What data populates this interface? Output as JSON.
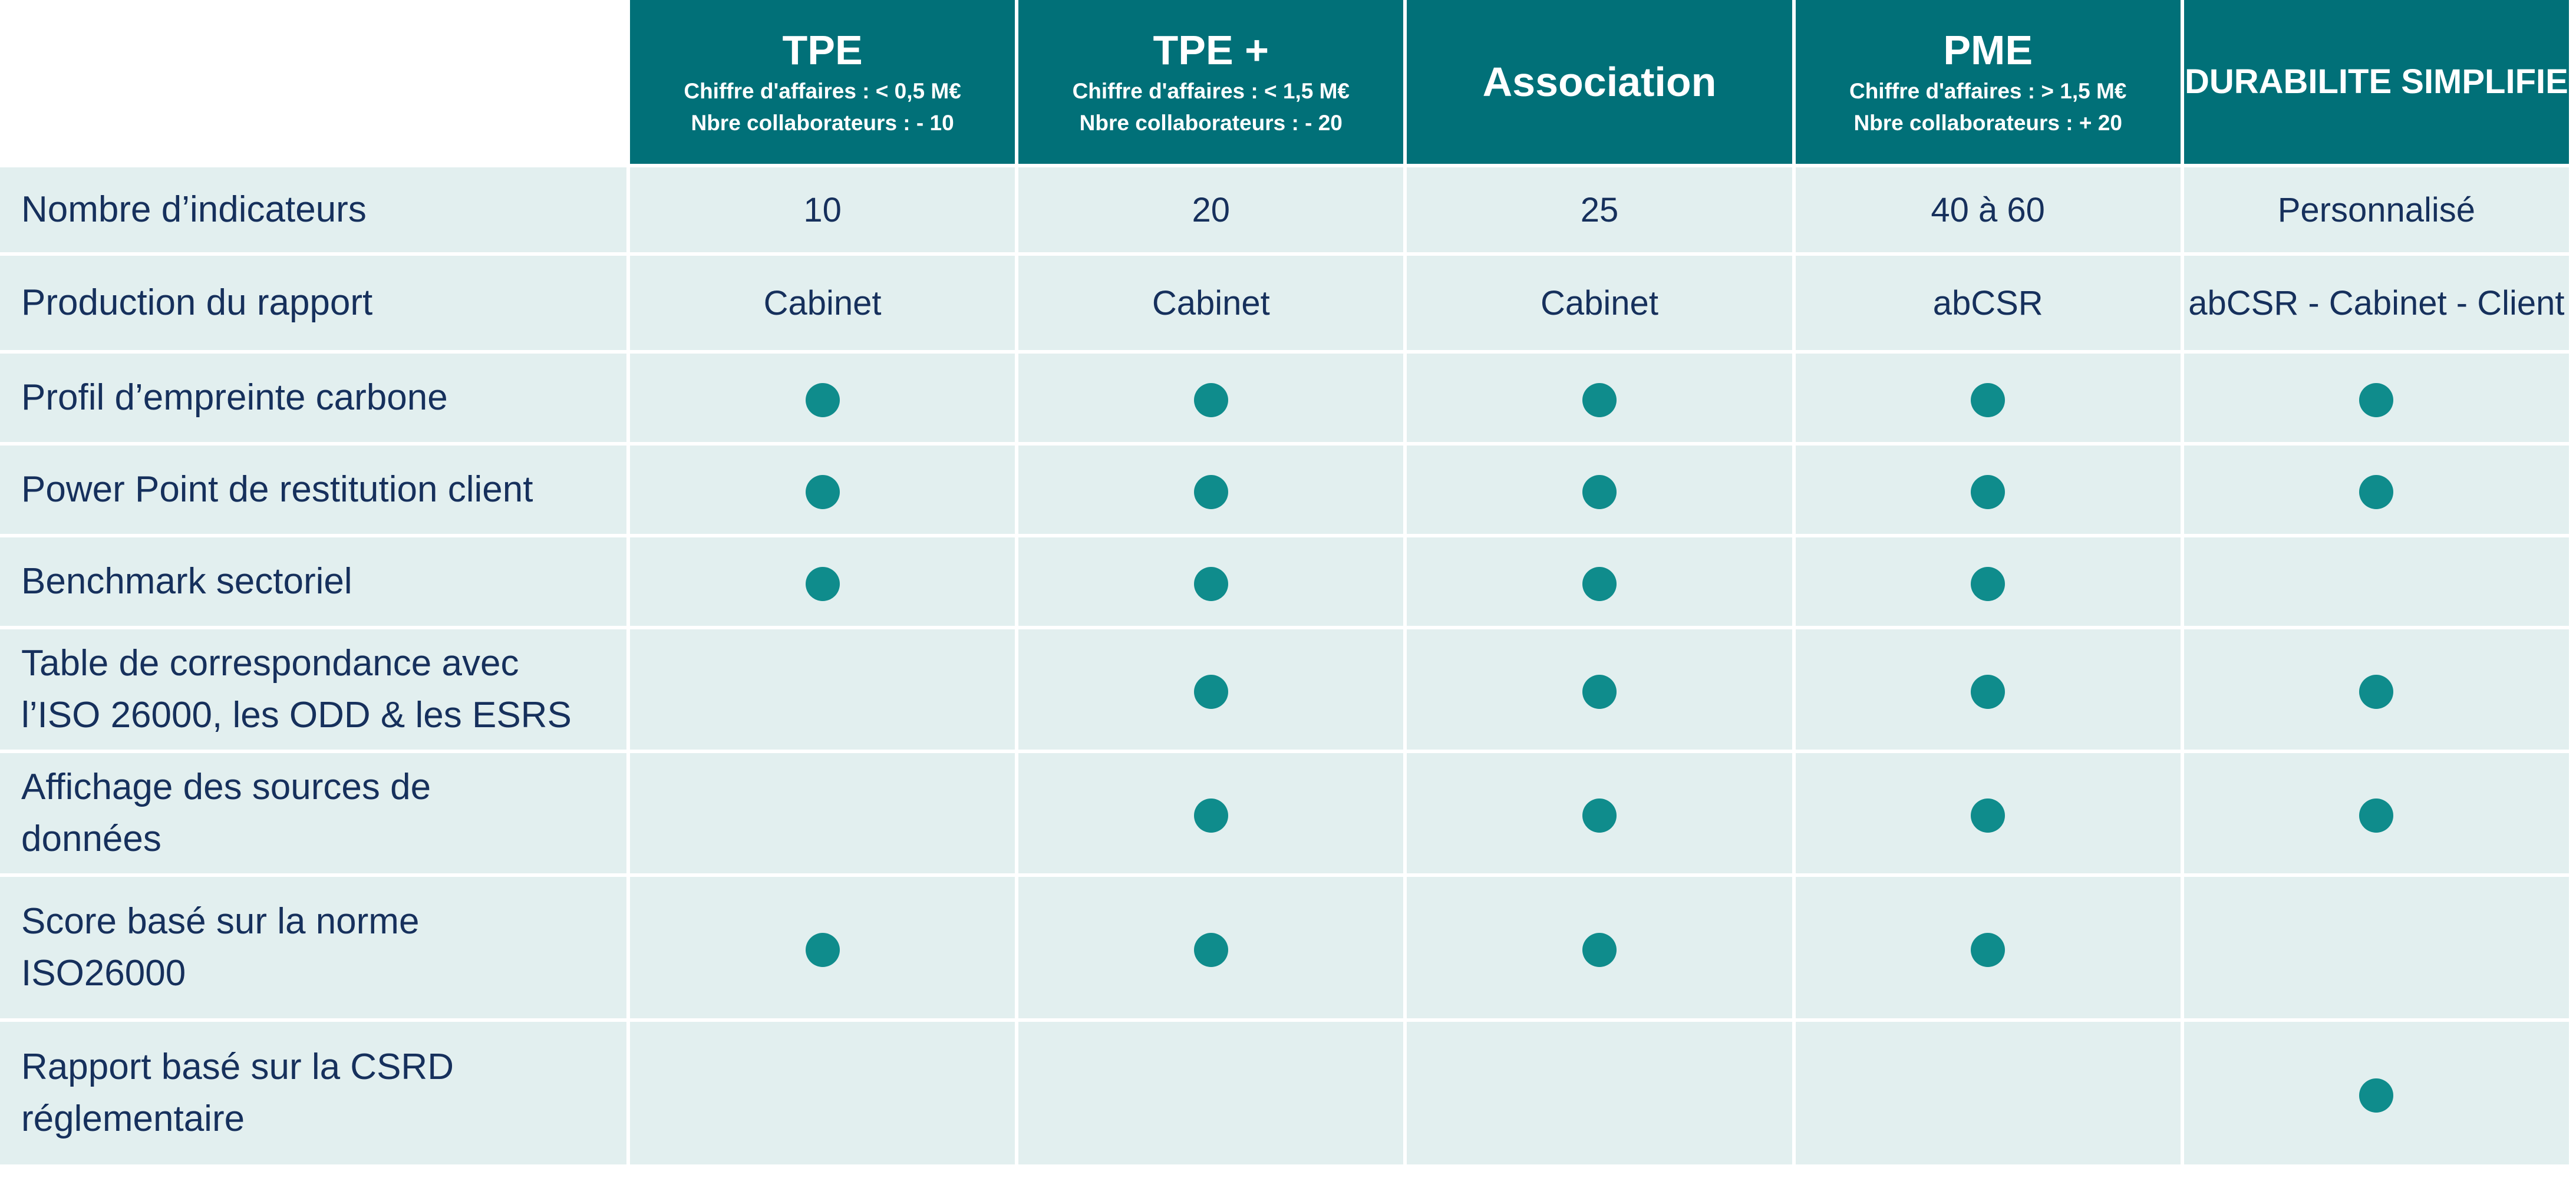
{
  "colors": {
    "header_bg": "#017078",
    "header_text": "#ffffff",
    "cell_bg": "#e2efef",
    "cell_text": "#16305c",
    "check_dot": "#0f8c8c"
  },
  "icons": {
    "included": "filled-circle-dot"
  },
  "plans": [
    {
      "name": "TPE",
      "subtitle_line1": "Chiffre d'affaires : < 0,5 M€",
      "subtitle_line2": "Nbre collaborateurs : - 10"
    },
    {
      "name": "TPE +",
      "subtitle_line1": "Chiffre d'affaires : < 1,5 M€",
      "subtitle_line2": "Nbre collaborateurs : - 20"
    },
    {
      "name": "Association"
    },
    {
      "name": "PME",
      "subtitle_line1": "Chiffre d'affaires : > 1,5 M€",
      "subtitle_line2": "Nbre collaborateurs : + 20"
    },
    {
      "name": "DURABILITE SIMPLIFIE"
    }
  ],
  "rows": [
    {
      "feature_line1": "Nombre d’indicateurs",
      "values": [
        "10",
        "20",
        "25",
        "40 à 60",
        "Personnalisé"
      ]
    },
    {
      "feature_line1": "Production du rapport",
      "values": [
        "Cabinet",
        "Cabinet",
        "Cabinet",
        "abCSR",
        "abCSR - Cabinet - Client"
      ]
    },
    {
      "feature_line1": "Profil d’empreinte carbone",
      "included": [
        true,
        true,
        true,
        true,
        true
      ]
    },
    {
      "feature_line1": "Power Point de restitution client",
      "included": [
        true,
        true,
        true,
        true,
        true
      ]
    },
    {
      "feature_line1": "Benchmark sectoriel",
      "included": [
        true,
        true,
        true,
        true,
        false
      ]
    },
    {
      "feature_line1": "Table de correspondance avec",
      "feature_line2": "l’ISO 26000, les ODD & les ESRS",
      "included": [
        false,
        true,
        true,
        true,
        true
      ]
    },
    {
      "feature_line1": "Affichage des sources de",
      "feature_line2": "données",
      "included": [
        false,
        true,
        true,
        true,
        true
      ]
    },
    {
      "feature_line1": "Score basé sur la norme",
      "feature_line2": "ISO26000",
      "included": [
        true,
        true,
        true,
        true,
        false
      ]
    },
    {
      "feature_line1": "Rapport basé sur la CSRD",
      "feature_line2": "réglementaire",
      "included": [
        false,
        false,
        false,
        false,
        true
      ]
    }
  ]
}
